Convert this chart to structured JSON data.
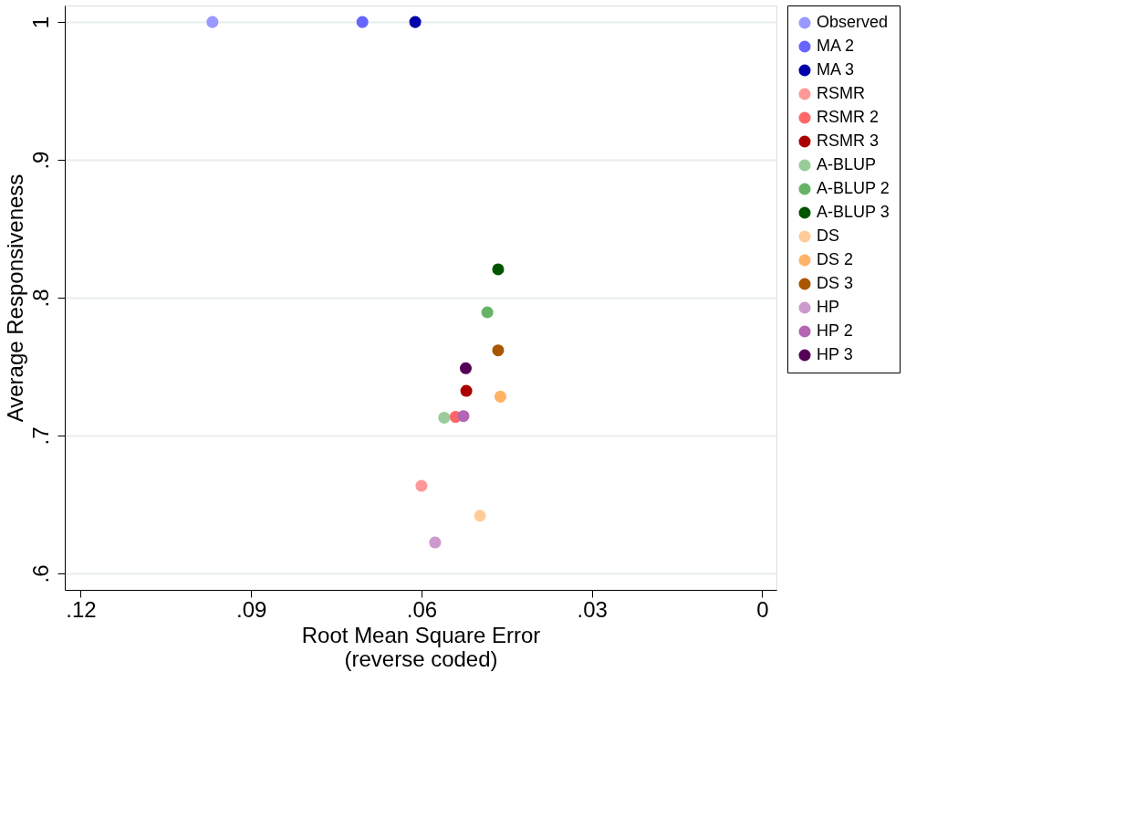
{
  "chart_data": {
    "type": "scatter",
    "xlabel": "Root Mean Square Error\n(reverse coded)",
    "ylabel": "Average Responsiveness",
    "xlim": [
      0.1228,
      -0.0025
    ],
    "xticks": [
      {
        "value": 0.12,
        "label": ".12"
      },
      {
        "value": 0.09,
        "label": ".09"
      },
      {
        "value": 0.06,
        "label": ".06"
      },
      {
        "value": 0.03,
        "label": ".03"
      },
      0
    ],
    "ylim": [
      0.588,
      1.012
    ],
    "yticks": [
      {
        "value": 0.6,
        "label": ".6"
      },
      {
        "value": 0.7,
        "label": ".7"
      },
      {
        "value": 0.8,
        "label": ".8"
      },
      {
        "value": 0.9,
        "label": ".9"
      },
      1
    ],
    "grid": "y",
    "legend": "right",
    "marker": "circle",
    "series": [
      {
        "name": "Observed",
        "color": "#9999ff",
        "x": [
          0.0968
        ],
        "values": [
          1.0
        ]
      },
      {
        "name": "MA 2",
        "color": "#6666ff",
        "x": [
          0.0704
        ],
        "values": [
          1.0
        ]
      },
      {
        "name": "MA 3",
        "color": "#0000aa",
        "x": [
          0.0611
        ],
        "values": [
          1.0
        ]
      },
      {
        "name": "RSMR",
        "color": "#ff9999",
        "x": [
          0.06
        ],
        "values": [
          0.6635
        ]
      },
      {
        "name": "RSMR 2",
        "color": "#ff6666",
        "x": [
          0.054
        ],
        "values": [
          0.7135
        ]
      },
      {
        "name": "RSMR 3",
        "color": "#aa0000",
        "x": [
          0.0521
        ],
        "values": [
          0.7324
        ]
      },
      {
        "name": "A-BLUP",
        "color": "#99cc99",
        "x": [
          0.056
        ],
        "values": [
          0.7129
        ]
      },
      {
        "name": "A-BLUP 2",
        "color": "#66b366",
        "x": [
          0.0484
        ],
        "values": [
          0.7894
        ]
      },
      {
        "name": "A-BLUP 3",
        "color": "#005500",
        "x": [
          0.0465
        ],
        "values": [
          0.8206
        ]
      },
      {
        "name": "DS",
        "color": "#ffcc99",
        "x": [
          0.0497
        ],
        "values": [
          0.6418
        ]
      },
      {
        "name": "DS 2",
        "color": "#ffb366",
        "x": [
          0.0461
        ],
        "values": [
          0.7282
        ]
      },
      {
        "name": "DS 3",
        "color": "#aa5500",
        "x": [
          0.0465
        ],
        "values": [
          0.7618
        ]
      },
      {
        "name": "HP",
        "color": "#cc99cc",
        "x": [
          0.0576
        ],
        "values": [
          0.6224
        ]
      },
      {
        "name": "HP 2",
        "color": "#b366b3",
        "x": [
          0.0526
        ],
        "values": [
          0.7141
        ]
      },
      {
        "name": "HP 3",
        "color": "#550055",
        "x": [
          0.0522
        ],
        "values": [
          0.7488
        ]
      }
    ]
  }
}
